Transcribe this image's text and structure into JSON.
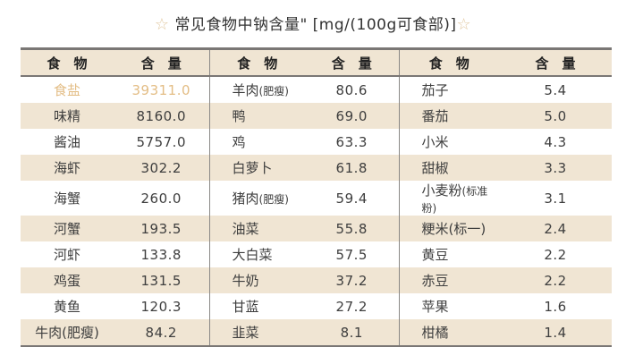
{
  "title": {
    "star_left": "☆",
    "text": "常见食物中钠含量\" [mg/(100g可食部)]",
    "star_right": "☆"
  },
  "colors": {
    "header_bg": "#f0e5d3",
    "alt_row_bg": "#f0e5d3",
    "highlight": "#e3bd85",
    "border": "#7a7775"
  },
  "table": {
    "headers": [
      "食　物",
      "含　量",
      "食　物",
      "含　量",
      "食　物",
      "含　量"
    ],
    "rows": [
      {
        "n1": "食盐",
        "v1": "39311.0",
        "n2": "羊肉",
        "n2s": "(肥瘦)",
        "v2": "80.6",
        "n3": "茄子",
        "n3s": "",
        "v3": "5.4"
      },
      {
        "n1": "味精",
        "v1": "8160.0",
        "n2": "鸭",
        "n2s": "",
        "v2": "69.0",
        "n3": "番茄",
        "n3s": "",
        "v3": "5.0"
      },
      {
        "n1": "酱油",
        "v1": "5757.0",
        "n2": "鸡",
        "n2s": "",
        "v2": "63.3",
        "n3": "小米",
        "n3s": "",
        "v3": "4.3"
      },
      {
        "n1": "海虾",
        "v1": "302.2",
        "n2": "白萝卜",
        "n2s": "",
        "v2": "61.8",
        "n3": "甜椒",
        "n3s": "",
        "v3": "3.3"
      },
      {
        "n1": "海蟹",
        "v1": "260.0",
        "n2": "猪肉",
        "n2s": "(肥瘦)",
        "v2": "59.4",
        "n3": "小麦粉",
        "n3s": "(标准粉)",
        "v3": "3.1"
      },
      {
        "n1": "河蟹",
        "v1": "193.5",
        "n2": "油菜",
        "n2s": "",
        "v2": "55.8",
        "n3": "粳米(标一)",
        "n3s": "",
        "v3": "2.4"
      },
      {
        "n1": "河虾",
        "v1": "133.8",
        "n2": "大白菜",
        "n2s": "",
        "v2": "57.5",
        "n3": "黄豆",
        "n3s": "",
        "v3": "2.2"
      },
      {
        "n1": "鸡蛋",
        "v1": "131.5",
        "n2": "牛奶",
        "n2s": "",
        "v2": "37.2",
        "n3": "赤豆",
        "n3s": "",
        "v3": "2.2"
      },
      {
        "n1": "黄鱼",
        "v1": "120.3",
        "n2": "甘蓝",
        "n2s": "",
        "v2": "27.2",
        "n3": "苹果",
        "n3s": "",
        "v3": "1.6"
      },
      {
        "n1": "牛肉(肥瘦)",
        "v1": "84.2",
        "n2": "韭菜",
        "n2s": "",
        "v2": "8.1",
        "n3": "柑橘",
        "n3s": "",
        "v3": "1.4"
      }
    ]
  }
}
